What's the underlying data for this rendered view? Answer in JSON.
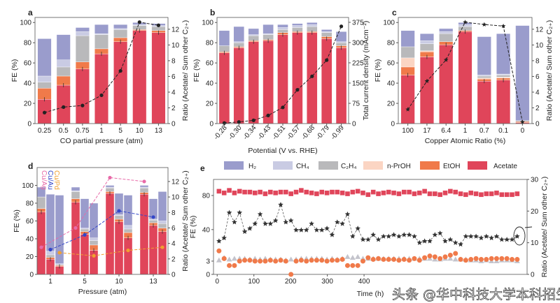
{
  "colors": {
    "Acetate": "#e0455a",
    "EtOH": "#f07a4a",
    "n-PrOH": "#fbd5c3",
    "C2H4": "#b9b9bb",
    "CH4": "#c9cbe3",
    "H2": "#9a9ccc",
    "ratio": "#222222",
    "Cu/Ag": "#e86aa8",
    "Cu/Au": "#3346c8",
    "Cu/Pd": "#f0a030"
  },
  "legend": {
    "items": [
      "H₂",
      "CH₄",
      "C₂H₄",
      "n-PrOH",
      "EtOH",
      "Acetate"
    ],
    "keys": [
      "H2",
      "CH4",
      "C2H4",
      "n-PrOH",
      "EtOH",
      "Acetate"
    ]
  },
  "watermark": "头条 @华中科技大学本科招生",
  "chart_data": [
    {
      "panel": "a",
      "type": "bar",
      "stacked": true,
      "xlabel": "CO partial pressure (atm)",
      "ylabel": "FE (%)",
      "ylabel_right": "Ratio (Acetate/ Sum other C₂₊)",
      "categories": [
        "0.25",
        "0.5",
        "0.75",
        "1",
        "5",
        "10",
        "13"
      ],
      "stack_order": [
        "Acetate",
        "EtOH",
        "n-PrOH",
        "C2H4",
        "CH4",
        "H2"
      ],
      "stacks": [
        [
          24,
          11,
          0,
          6,
          6,
          37
        ],
        [
          38,
          9,
          0,
          9,
          7,
          25
        ],
        [
          54,
          7,
          0,
          26,
          4,
          4
        ],
        [
          69,
          5,
          0,
          14,
          1,
          9
        ],
        [
          81,
          4,
          0,
          8,
          1,
          4
        ],
        [
          92,
          1,
          0,
          4,
          1,
          2
        ],
        [
          90,
          2,
          0,
          4,
          1,
          2
        ]
      ],
      "ratio": [
        1.4,
        2.1,
        2.3,
        3.6,
        6.7,
        12.9,
        12.5
      ],
      "yticks": [
        0,
        20,
        40,
        60,
        80,
        100
      ],
      "ylim": [
        0,
        105
      ],
      "yticks_right": [
        0,
        2,
        4,
        6,
        8,
        10,
        12
      ],
      "ylim_right": [
        0,
        13.5
      ]
    },
    {
      "panel": "b",
      "type": "bar",
      "stacked": true,
      "xlabel": "Potential (V vs. RHE)",
      "ylabel": "FE (%)",
      "ylabel_right": "Total current density (mAcm⁻²)",
      "categories": [
        "-0.28",
        "-0.30",
        "-0.34",
        "-0.43",
        "-0.51",
        "-0.57",
        "-0.68",
        "-0.79",
        "-0.99"
      ],
      "stack_order": [
        "Acetate",
        "EtOH",
        "n-PrOH",
        "C2H4",
        "CH4",
        "H2"
      ],
      "stacks": [
        [
          70,
          1,
          0,
          6,
          0,
          15
        ],
        [
          75,
          1,
          0,
          4,
          1,
          15
        ],
        [
          81,
          1,
          0,
          5,
          1,
          6
        ],
        [
          82,
          1,
          0,
          5,
          1,
          9
        ],
        [
          88,
          2,
          0,
          3,
          2,
          3
        ],
        [
          90,
          1,
          0,
          4,
          2,
          2
        ],
        [
          90,
          1,
          0,
          5,
          2,
          2
        ],
        [
          84,
          2,
          0,
          4,
          1,
          2
        ],
        [
          75,
          2,
          0,
          3,
          1,
          10
        ]
      ],
      "ratio": [
        2,
        6,
        12,
        30,
        60,
        125,
        175,
        235,
        360
      ],
      "yticks": [
        0,
        20,
        40,
        60,
        80,
        100
      ],
      "ylim": [
        0,
        105
      ],
      "yticks_right": [
        0,
        75,
        150,
        225,
        300,
        375
      ],
      "ylim_right": [
        0,
        393
      ]
    },
    {
      "panel": "c",
      "type": "bar",
      "stacked": true,
      "xlabel": "Copper Atomic Ratio (%)",
      "ylabel": "FE (%)",
      "ylabel_right": "Ratio (Acetate/ Sum other C₂₊)",
      "categories": [
        "100",
        "17",
        "6.4",
        "1",
        "0.7",
        "0.1",
        "0"
      ],
      "stack_order": [
        "Acetate",
        "EtOH",
        "n-PrOH",
        "C2H4",
        "CH4",
        "H2"
      ],
      "stacks": [
        [
          48,
          8,
          9,
          11,
          0,
          16
        ],
        [
          66,
          5,
          1,
          7,
          3,
          7
        ],
        [
          78,
          3,
          0,
          8,
          2,
          3
        ],
        [
          91,
          1,
          0,
          4,
          2,
          2
        ],
        [
          42,
          2,
          1,
          2,
          1,
          38
        ],
        [
          43,
          2,
          1,
          2,
          1,
          40
        ],
        [
          1,
          1,
          0,
          1,
          0,
          94
        ]
      ],
      "ratio": [
        1.8,
        5.4,
        8.1,
        12.9,
        12.6,
        12.4,
        0.2
      ],
      "yticks": [
        0,
        20,
        40,
        60,
        80,
        100
      ],
      "ylim": [
        0,
        105
      ],
      "yticks_right": [
        0,
        2,
        4,
        6,
        8,
        10,
        12
      ],
      "ylim_right": [
        0,
        13.5
      ]
    },
    {
      "panel": "d",
      "type": "bar",
      "stacked": true,
      "grouped": true,
      "xlabel": "Pressure (atm)",
      "ylabel": "FE (%)",
      "ylabel_right": "Ratio (Acetate/ Sum other C₂₊)",
      "categories": [
        "1",
        "5",
        "10",
        "13"
      ],
      "groups": [
        "Cu/Ag",
        "Cu/Au",
        "Cu/Pd"
      ],
      "stack_order": [
        "Acetate",
        "EtOH",
        "n-PrOH",
        "C2H4",
        "CH4",
        "H2"
      ],
      "stacks": [
        [
          [
            70,
            4,
            0,
            13,
            0,
            11
          ],
          [
            17,
            2,
            0,
            3,
            4,
            64
          ],
          [
            9,
            1,
            0,
            1,
            1,
            77
          ]
        ],
        [
          [
            81,
            4,
            0,
            8,
            1,
            4
          ],
          [
            45,
            3,
            0,
            3,
            1,
            33
          ],
          [
            27,
            6,
            0,
            5,
            3,
            39
          ]
        ],
        [
          [
            91,
            2,
            0,
            4,
            1,
            2
          ],
          [
            59,
            3,
            0,
            4,
            1,
            24
          ],
          [
            41,
            6,
            0,
            4,
            4,
            34
          ]
        ],
        [
          [
            90,
            2,
            0,
            5,
            1,
            2
          ],
          [
            55,
            3,
            0,
            3,
            1,
            23
          ],
          [
            48,
            4,
            0,
            5,
            3,
            33
          ]
        ]
      ],
      "ratio_series": [
        {
          "name": "Cu/Ag",
          "values": [
            3.5,
            6,
            12.5,
            12
          ]
        },
        {
          "name": "Cu/Au",
          "values": [
            3.2,
            5.1,
            8.2,
            7.4
          ]
        },
        {
          "name": "Cu/Pd",
          "values": [
            2.8,
            2.4,
            3.1,
            3.5
          ]
        }
      ],
      "yticks": [
        0,
        20,
        40,
        60,
        80,
        100
      ],
      "ylim": [
        0,
        120
      ],
      "yticks_right": [
        0,
        2,
        4,
        6,
        8,
        10,
        12
      ],
      "ylim_right": [
        0,
        13.8
      ]
    },
    {
      "panel": "e",
      "type": "scatter",
      "xlabel": "Time (h)",
      "ylabel": "FE (%)",
      "ylabel_right": "Ratio (Acetate/ Sum other C₂₊)",
      "yaxis_break": true,
      "xticks": [
        0,
        100,
        200,
        300,
        400
      ],
      "xlim": [
        -10,
        844
      ],
      "yticks": [
        0,
        3,
        40,
        80
      ],
      "yticks_right": [
        0,
        10,
        20,
        30
      ],
      "ylim_right": [
        0,
        30
      ],
      "time_h": [
        5,
        19,
        33,
        47,
        61,
        75,
        89,
        103,
        117,
        131,
        145,
        159,
        173,
        187,
        201,
        215,
        229,
        243,
        257,
        271,
        285,
        299,
        313,
        327,
        341,
        355,
        369,
        383,
        397,
        411,
        425,
        439,
        453,
        467,
        481,
        495,
        509,
        523,
        537,
        551,
        565,
        579,
        593,
        607,
        621,
        635,
        649,
        663,
        677,
        691,
        705,
        719,
        733,
        747,
        761,
        775,
        789,
        803,
        817
      ],
      "series": [
        {
          "name": "Acetate",
          "marker": "square",
          "values": [
            85,
            83,
            86,
            83,
            85,
            84,
            84,
            83,
            84,
            82,
            84,
            83,
            84,
            84,
            82,
            84,
            86,
            84,
            83,
            82,
            84,
            83,
            84,
            84,
            83,
            82,
            84,
            85,
            83,
            81,
            84,
            82,
            83,
            84,
            83,
            82,
            84,
            84,
            82,
            83,
            85,
            82,
            82,
            81,
            83,
            85,
            84,
            82,
            81,
            83,
            82,
            81,
            82,
            82,
            83,
            81,
            81,
            81,
            82
          ]
        },
        {
          "name": "C2H4",
          "marker": "triangle",
          "values": [
            4,
            7,
            5,
            6,
            6,
            6,
            5,
            6,
            5,
            6,
            5,
            5,
            5,
            4,
            5,
            5,
            6,
            6,
            6,
            6,
            6,
            5,
            6,
            5,
            6,
            8,
            7,
            8,
            6,
            6,
            6,
            6,
            6,
            6,
            6,
            6,
            6,
            6,
            6,
            6,
            6,
            6,
            5,
            5,
            6,
            6,
            5,
            5,
            5,
            4,
            4,
            3,
            4,
            3,
            3,
            4,
            4,
            4,
            3
          ]
        },
        {
          "name": "EtOH",
          "marker": "circle",
          "values": [
            15,
            6,
            2,
            2,
            3,
            4,
            4,
            3,
            3,
            3,
            4,
            3,
            4,
            3,
            0,
            3,
            4,
            3,
            4,
            4,
            4,
            3,
            4,
            4,
            5,
            2,
            2,
            2,
            3,
            7,
            5,
            6,
            5,
            5,
            5,
            4,
            5,
            4,
            6,
            4,
            7,
            9,
            8,
            6,
            8,
            10,
            12,
            5,
            4,
            5,
            6,
            5,
            5,
            6,
            6,
            6,
            6,
            5,
            5
          ]
        },
        {
          "name": "Ratio",
          "marker": "star",
          "axis": "right",
          "values": [
            10.5,
            11.5,
            19.5,
            16.5,
            19.5,
            13.5,
            14.5,
            16,
            19,
            16,
            16,
            17,
            22,
            16.5,
            17,
            14,
            14,
            14,
            16,
            14,
            14,
            14.5,
            12.5,
            16.5,
            16,
            19,
            12,
            14.5,
            11,
            11,
            12.5,
            11,
            12,
            12,
            12.5,
            12,
            12.5,
            12.5,
            12,
            10,
            10.5,
            10.5,
            12.5,
            13,
            10.5,
            11,
            10,
            9.5,
            12,
            12,
            12,
            11.5,
            12,
            11.5,
            12,
            11,
            11,
            11,
            12
          ]
        }
      ]
    }
  ]
}
